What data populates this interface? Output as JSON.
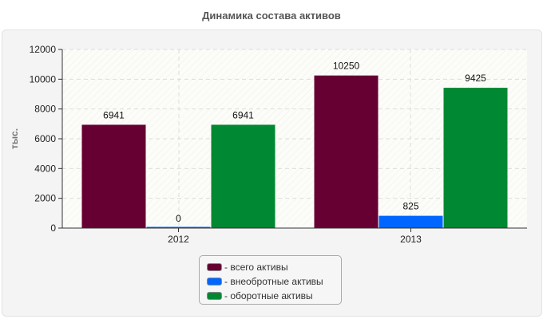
{
  "chart_data": {
    "type": "bar",
    "title": "Динамика состава активов",
    "ylabel": "тыс.",
    "xlabel": "",
    "categories": [
      "2012",
      "2013"
    ],
    "ylim": [
      0,
      12000
    ],
    "yticks": [
      "0",
      "2000",
      "4000",
      "6000",
      "8000",
      "10000",
      "12000"
    ],
    "grid": true,
    "legend_position": "bottom",
    "series": [
      {
        "name": "- всего активы",
        "color": "#660033",
        "values": [
          6941,
          10250
        ]
      },
      {
        "name": "- внеобротные активы",
        "color": "#0066ff",
        "values": [
          0,
          825
        ]
      },
      {
        "name": "- оборотные активы",
        "color": "#008833",
        "values": [
          6941,
          9425
        ]
      }
    ]
  }
}
